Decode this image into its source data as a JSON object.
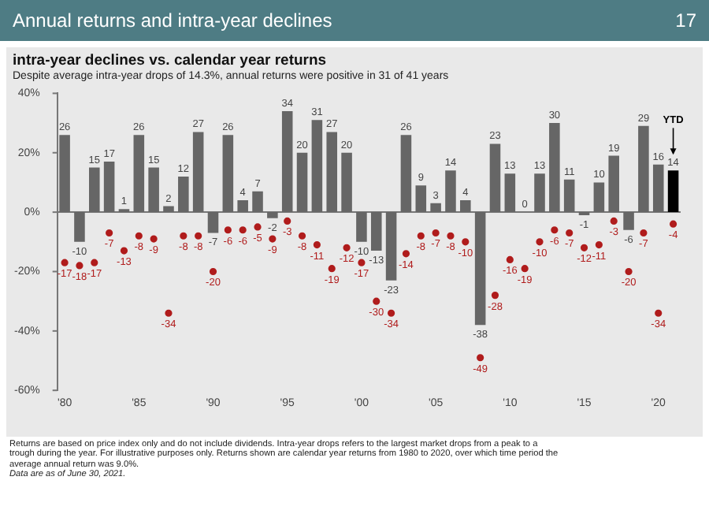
{
  "chart_data": {
    "type": "bar",
    "title": "Annual returns and intra-year declines",
    "subtitle": "intra-year declines vs. calendar year returns",
    "categories": [
      "'80",
      null,
      null,
      null,
      null,
      "'85",
      null,
      null,
      null,
      null,
      "'90",
      null,
      null,
      null,
      null,
      "'95",
      null,
      null,
      null,
      null,
      "'00",
      null,
      null,
      null,
      null,
      "'05",
      null,
      null,
      null,
      null,
      "'10",
      null,
      null,
      null,
      null,
      "'15",
      null,
      null,
      null,
      null,
      "'20",
      null
    ],
    "series": [
      {
        "colors": [
          "#666666",
          "#666666",
          "#666666",
          "#666666",
          "#666666",
          "#666666",
          "#666666",
          "#666666",
          "#666666",
          "#666666",
          "#666666",
          "#666666",
          "#666666",
          "#666666",
          "#666666",
          "#666666",
          "#666666",
          "#666666",
          "#666666",
          "#666666",
          "#666666",
          "#666666",
          "#666666",
          "#666666",
          "#666666",
          "#666666",
          "#666666",
          "#666666",
          "#666666",
          "#666666",
          "#666666",
          "#666666",
          "#666666",
          "#666666",
          "#666666",
          "#666666",
          "#666666",
          "#666666",
          "#666666",
          "#666666",
          "#666666",
          "#000000"
        ],
        "values": [
          26,
          -10,
          15,
          17,
          1,
          26,
          15,
          2,
          12,
          27,
          -7,
          26,
          4,
          7,
          -2,
          34,
          20,
          31,
          27,
          20,
          -10,
          -13,
          -23,
          26,
          9,
          3,
          14,
          4,
          -38,
          23,
          13,
          0,
          13,
          30,
          11,
          -1,
          10,
          19,
          -6,
          29,
          16,
          14
        ]
      },
      {
        "type": "scatter",
        "color": "#b01c1c",
        "marker": "circle",
        "values": [
          -17,
          -18,
          -17,
          -7,
          -13,
          -8,
          -9,
          -34,
          -8,
          -8,
          -20,
          -6,
          -6,
          -5,
          -9,
          -3,
          -8,
          -11,
          -19,
          -12,
          -17,
          -30,
          -34,
          -14,
          -8,
          -7,
          -8,
          -10,
          -49,
          -28,
          -16,
          -19,
          -10,
          -6,
          -7,
          -12,
          -11,
          -3,
          -20,
          -7,
          -34,
          -4
        ]
      }
    ],
    "ylim": [
      -60,
      40
    ],
    "yticks": [
      {
        "value": -60,
        "label": "-60%"
      },
      {
        "value": -40,
        "label": "-40%"
      },
      {
        "value": -20,
        "label": "-20%"
      },
      {
        "value": 0,
        "label": "0%"
      },
      {
        "value": 20,
        "label": "20%"
      },
      {
        "value": 40,
        "label": "40%"
      }
    ],
    "legend": false,
    "data_labels": true,
    "annotations": [
      "17",
      "Despite average intra-year drops of 14.3%, annual returns were positive in 31 of 41 years",
      "YTD",
      "Returns are based on price index only and do not include dividends. Intra-year drops refers to the largest market drops from a peak to a trough during the year. For illustrative purposes only. Returns shown are calendar year returns from 1980 to 2020, over which time period the average annual return was 9.0%.",
      "Data are as of June 30, 2021."
    ]
  }
}
